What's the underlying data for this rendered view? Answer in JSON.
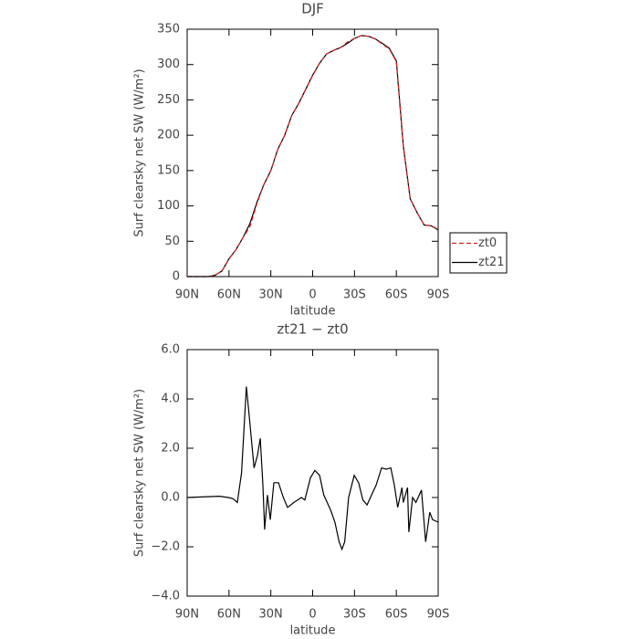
{
  "chart_data": [
    {
      "type": "line",
      "title": "DJF",
      "x_label": "latitude",
      "y_label": "Surf clearsky net SW (W/m²)",
      "x": [
        90,
        85,
        80,
        75,
        70,
        65,
        60,
        55,
        50,
        45,
        40,
        35,
        30,
        25,
        20,
        15,
        10,
        5,
        0,
        -5,
        -10,
        -15,
        -20,
        -25,
        -30,
        -35,
        -40,
        -45,
        -50,
        -55,
        -60,
        -65,
        -70,
        -75,
        -80,
        -85,
        -90
      ],
      "series": [
        {
          "name": "zt0",
          "color": "#d62020",
          "style": "dashed",
          "values": [
            0,
            0,
            0,
            0,
            2,
            8,
            25,
            38,
            55,
            70.5,
            103,
            130,
            150,
            180,
            200,
            228,
            245,
            265,
            284.5,
            302,
            315,
            320,
            324,
            332,
            337,
            341,
            340,
            336,
            329,
            322,
            304,
            185,
            110,
            90,
            73,
            72,
            67
          ]
        },
        {
          "name": "zt21",
          "color": "#000000",
          "style": "solid",
          "values": [
            0,
            0,
            0,
            0,
            2,
            8,
            25,
            38,
            55,
            75,
            105,
            130,
            150,
            180,
            200,
            228,
            245,
            265,
            285,
            302,
            315,
            320,
            324,
            330,
            337,
            341,
            340,
            336,
            330,
            323,
            305,
            185,
            110,
            90,
            73,
            72,
            66
          ]
        }
      ],
      "xlim": [
        90,
        -90
      ],
      "xticks": [
        {
          "value": 90,
          "label": "90N"
        },
        {
          "value": 60,
          "label": "60N"
        },
        {
          "value": 30,
          "label": "30N"
        },
        0,
        {
          "value": -30,
          "label": "30S"
        },
        {
          "value": -60,
          "label": "60S"
        },
        {
          "value": -90,
          "label": "90S"
        }
      ],
      "ylim": [
        0,
        350
      ],
      "yticks": [
        0,
        50,
        100,
        150,
        200,
        250,
        300,
        350
      ],
      "legend": "right"
    },
    {
      "type": "line",
      "title": "zt21 − zt0",
      "x_label": "latitude",
      "y_label": "Surf clearsky net SW (W/m²)",
      "x": [
        90,
        67,
        60.5,
        57,
        54,
        51,
        47.5,
        45,
        42,
        39.6,
        37.6,
        35.7,
        34.4,
        32.4,
        30.4,
        27.8,
        24.5,
        21,
        18,
        13.4,
        8,
        5.6,
        1.6,
        -1.6,
        -5,
        -8,
        -12.8,
        -16,
        -19,
        -21,
        -23,
        -25.8,
        -29.8,
        -33,
        -36,
        -39,
        -43,
        -45.5,
        -49.4,
        -52.7,
        -56,
        -58.6,
        -61,
        -64,
        -65,
        -68,
        -69,
        -71.7,
        -74,
        -78,
        -81,
        -84,
        -86,
        -90
      ],
      "values": [
        0,
        0.05,
        0,
        -0.05,
        -0.2,
        1.0,
        4.5,
        3.0,
        1.2,
        1.7,
        2.4,
        0.5,
        -1.3,
        0.1,
        -0.9,
        0.6,
        0.6,
        0,
        -0.4,
        -0.2,
        0,
        -0.1,
        0.8,
        1.1,
        0.9,
        0.1,
        -0.5,
        -1.0,
        -1.8,
        -2.1,
        -1.8,
        0,
        0.9,
        0.6,
        -0.1,
        -0.3,
        0.2,
        0.5,
        1.2,
        1.15,
        1.2,
        0.5,
        -0.4,
        0.4,
        -0.2,
        0.4,
        -1.4,
        0,
        -0.2,
        0.3,
        -1.8,
        -0.6,
        -0.9,
        -1.0
      ],
      "color": "#000000",
      "xlim": [
        90,
        -90
      ],
      "xticks": [
        {
          "value": 90,
          "label": "90N"
        },
        {
          "value": 60,
          "label": "60N"
        },
        {
          "value": 30,
          "label": "30N"
        },
        0,
        {
          "value": -30,
          "label": "30S"
        },
        {
          "value": -60,
          "label": "60S"
        },
        {
          "value": -90,
          "label": "90S"
        }
      ],
      "ylim": [
        -4,
        6
      ],
      "yticks": [
        {
          "value": -4,
          "label": "−4.0"
        },
        {
          "value": -2,
          "label": "−2.0"
        },
        {
          "value": 0,
          "label": "0.0"
        },
        {
          "value": 2,
          "label": "2.0"
        },
        {
          "value": 4,
          "label": "4.0"
        },
        {
          "value": 6,
          "label": "6.0"
        }
      ]
    }
  ]
}
